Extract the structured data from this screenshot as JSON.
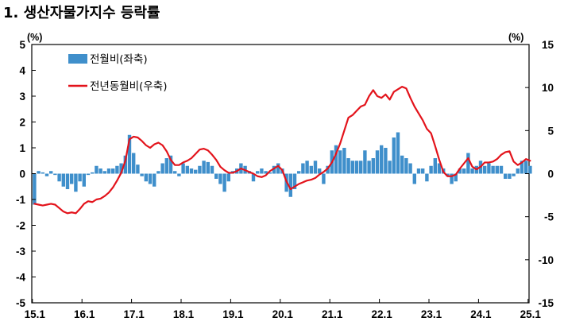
{
  "chart_data": {
    "title": "1. 생산자물가지수 등락률",
    "type": "bar+line",
    "colors": {
      "bar": "#3f8fcb",
      "line": "#e3131b"
    },
    "left_axis": {
      "unit": "(%)",
      "range": [
        -5,
        5
      ],
      "ticks": [
        5,
        4,
        3,
        2,
        1,
        0,
        -1,
        -2,
        -3,
        -4,
        -5
      ]
    },
    "right_axis": {
      "unit": "(%)",
      "range": [
        -15,
        15
      ],
      "ticks": [
        15,
        10,
        5,
        0,
        -5,
        -10,
        -15
      ]
    },
    "x_tick_labels": [
      "15.1",
      "16.1",
      "17.1",
      "18.1",
      "19.1",
      "20.1",
      "21.1",
      "22.1",
      "23.1",
      "24.1",
      "25.1"
    ],
    "grid": false,
    "legend_position": "top-left",
    "series": [
      {
        "name": "전월비(좌축)",
        "type": "bar",
        "axis": "left",
        "values": [
          -1.2,
          0.1,
          0.05,
          -0.1,
          0.1,
          -0.05,
          -0.3,
          -0.5,
          -0.6,
          -0.4,
          -0.7,
          -0.3,
          -0.5,
          -0.05,
          0.05,
          0.3,
          0.2,
          0.1,
          0.2,
          0.2,
          0.3,
          0.4,
          0.7,
          1.5,
          0.8,
          0.35,
          -0.1,
          -0.3,
          -0.4,
          -0.5,
          0.1,
          0.4,
          0.6,
          0.7,
          0.1,
          -0.1,
          0.4,
          0.3,
          0.2,
          0.15,
          0.3,
          0.5,
          0.45,
          0.3,
          -0.2,
          -0.4,
          -0.7,
          -0.3,
          0.1,
          0.2,
          0.4,
          0.3,
          0.1,
          -0.3,
          0.1,
          0.2,
          0.1,
          0.05,
          0.3,
          0.4,
          0.2,
          -0.7,
          -0.9,
          -0.6,
          0.1,
          0.4,
          0.5,
          0.3,
          0.5,
          0.2,
          -0.4,
          0.3,
          0.9,
          1.1,
          0.9,
          1.0,
          0.6,
          0.5,
          0.5,
          0.5,
          0.9,
          0.5,
          0.6,
          0.9,
          1.1,
          1.0,
          0.5,
          1.4,
          1.6,
          0.7,
          0.6,
          0.4,
          -0.4,
          0.2,
          0.2,
          -0.3,
          0.3,
          0.6,
          0.4,
          0.2,
          -0.1,
          -0.4,
          -0.3,
          0.2,
          0.2,
          0.8,
          0.2,
          0.3,
          0.5,
          0.3,
          0.4,
          0.3,
          0.3,
          0.3,
          -0.2,
          -0.2,
          -0.1,
          0.2,
          0.5,
          0.5,
          0.3
        ]
      },
      {
        "name": "전년동월비(우축)",
        "type": "line",
        "axis": "right",
        "values": [
          -3.5,
          -3.6,
          -3.7,
          -3.6,
          -3.5,
          -3.6,
          -4.0,
          -4.4,
          -4.6,
          -4.5,
          -4.6,
          -4.1,
          -3.5,
          -3.2,
          -3.3,
          -3.0,
          -2.9,
          -2.6,
          -2.2,
          -1.6,
          -0.8,
          0.1,
          1.5,
          4.0,
          4.3,
          4.2,
          3.8,
          3.3,
          3.0,
          3.4,
          3.6,
          3.3,
          2.6,
          1.6,
          1.0,
          1.0,
          1.3,
          1.5,
          1.8,
          2.3,
          2.8,
          2.9,
          2.7,
          2.2,
          1.6,
          0.8,
          0.4,
          0.1,
          0.1,
          0.3,
          0.6,
          0.4,
          0.2,
          0.0,
          -0.3,
          -0.4,
          -0.2,
          0.3,
          0.6,
          0.9,
          0.4,
          -0.9,
          -1.8,
          -1.5,
          -1.2,
          -1.0,
          -0.8,
          -0.7,
          -0.5,
          -0.1,
          0.2,
          0.6,
          1.3,
          2.3,
          3.5,
          5.0,
          6.5,
          6.8,
          7.3,
          7.8,
          8.0,
          9.0,
          9.7,
          9.0,
          8.8,
          9.2,
          8.6,
          9.5,
          9.8,
          10.1,
          9.9,
          8.8,
          7.8,
          7.0,
          6.2,
          5.2,
          4.7,
          3.2,
          1.6,
          0.2,
          -0.3,
          -0.3,
          -0.1,
          0.6,
          1.2,
          1.8,
          0.8,
          0.5,
          0.8,
          1.3,
          1.3,
          1.4,
          1.7,
          2.2,
          2.5,
          2.6,
          1.4,
          1.0,
          1.3,
          1.7,
          1.5
        ]
      }
    ]
  }
}
